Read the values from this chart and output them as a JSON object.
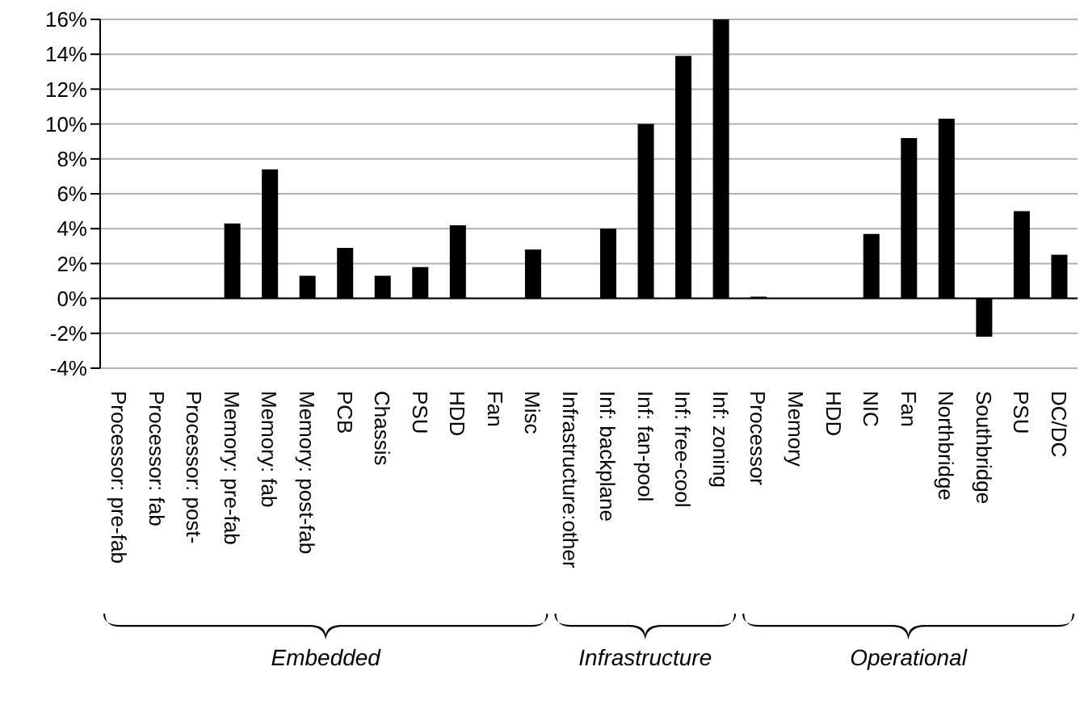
{
  "chart_data": {
    "type": "bar",
    "categories": [
      "Processor: pre-fab",
      "Processor: fab",
      "Processor: post-",
      "Memory: pre-fab",
      "Memory: fab",
      "Memory: post-fab",
      "PCB",
      "Chassis",
      "PSU",
      "HDD",
      "Fan",
      "Misc",
      "Infrastructure:other",
      "Inf: backplane",
      "Inf: fan-pool",
      "Inf: free-cool",
      "Inf: zoning",
      "Processor",
      "Memory",
      "HDD",
      "NIC",
      "Fan",
      "Northbridge",
      "Southbridge",
      "PSU",
      "DC/DC"
    ],
    "values": [
      0,
      0,
      0,
      4.3,
      7.4,
      1.3,
      2.9,
      1.3,
      1.8,
      4.2,
      0,
      2.8,
      0,
      4.0,
      10.0,
      13.9,
      16,
      0.1,
      0,
      0,
      3.7,
      9.2,
      10.3,
      -2.2,
      5.0,
      2.5
    ],
    "color": "#000000",
    "ylim": [
      -4,
      16
    ],
    "yticks": [
      {
        "value": -4,
        "label": "-4%"
      },
      {
        "value": -2,
        "label": "-2%"
      },
      {
        "value": 0,
        "label": "0%"
      },
      {
        "value": 2,
        "label": "2%"
      },
      {
        "value": 4,
        "label": "4%"
      },
      {
        "value": 6,
        "label": "6%"
      },
      {
        "value": 8,
        "label": "8%"
      },
      {
        "value": 10,
        "label": "10%"
      },
      {
        "value": 12,
        "label": "12%"
      },
      {
        "value": 14,
        "label": "14%"
      },
      {
        "value": 16,
        "label": "16%"
      }
    ],
    "grid": "y",
    "annotations": [
      "Embedded",
      "Infrastructure",
      "Operational"
    ]
  }
}
